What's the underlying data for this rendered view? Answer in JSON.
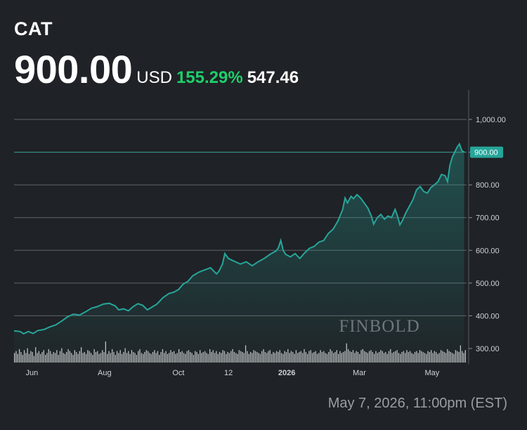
{
  "header": {
    "ticker": "CAT",
    "price": "900.00",
    "currency": "USD",
    "pct_change": "155.29%",
    "abs_change": "547.46"
  },
  "footer": {
    "date": "May 7, 2026, 11:00pm (EST)"
  },
  "watermark": "FINBOLD",
  "colors": {
    "background": "#1f2226",
    "line": "#26a69a",
    "positive": "#1ecf6b",
    "volume": "#d9dadc",
    "grid": "#6b7077"
  },
  "chart_data": {
    "type": "area",
    "title": "CAT",
    "y_tick_labels": [
      "1,000.00",
      "900.00",
      "800.00",
      "700.00",
      "600.00",
      "500.00",
      "400.00",
      "300.00"
    ],
    "y_ticks": [
      1000,
      900,
      800,
      700,
      600,
      500,
      400,
      300
    ],
    "ylim": [
      270,
      1095
    ],
    "x_tick_labels": [
      {
        "label": "Jun",
        "t": 15,
        "bold": false
      },
      {
        "label": "Aug",
        "t": 76,
        "bold": false
      },
      {
        "label": "Oct",
        "t": 138,
        "bold": false
      },
      {
        "label": "12",
        "t": 180,
        "bold": false
      },
      {
        "label": "2026",
        "t": 229,
        "bold": true
      },
      {
        "label": "Mar",
        "t": 290,
        "bold": false
      },
      {
        "label": "May",
        "t": 351,
        "bold": false
      }
    ],
    "last_value_label": "900.00",
    "last_value": 900,
    "grid": true,
    "series": [
      {
        "values": [
          [
            0,
            354
          ],
          [
            5,
            352
          ],
          [
            8,
            345
          ],
          [
            12,
            352
          ],
          [
            16,
            346
          ],
          [
            20,
            355
          ],
          [
            25,
            358
          ],
          [
            30,
            366
          ],
          [
            35,
            372
          ],
          [
            40,
            384
          ],
          [
            45,
            397
          ],
          [
            50,
            405
          ],
          [
            55,
            402
          ],
          [
            60,
            412
          ],
          [
            65,
            423
          ],
          [
            70,
            428
          ],
          [
            75,
            436
          ],
          [
            80,
            438
          ],
          [
            85,
            430
          ],
          [
            88,
            418
          ],
          [
            92,
            421
          ],
          [
            96,
            415
          ],
          [
            100,
            428
          ],
          [
            104,
            437
          ],
          [
            108,
            432
          ],
          [
            112,
            418
          ],
          [
            116,
            427
          ],
          [
            120,
            436
          ],
          [
            125,
            455
          ],
          [
            130,
            468
          ],
          [
            134,
            472
          ],
          [
            138,
            480
          ],
          [
            142,
            497
          ],
          [
            146,
            505
          ],
          [
            150,
            522
          ],
          [
            155,
            533
          ],
          [
            160,
            540
          ],
          [
            165,
            547
          ],
          [
            170,
            528
          ],
          [
            172,
            536
          ],
          [
            175,
            558
          ],
          [
            177,
            590
          ],
          [
            180,
            575
          ],
          [
            183,
            570
          ],
          [
            186,
            565
          ],
          [
            190,
            558
          ],
          [
            195,
            565
          ],
          [
            200,
            553
          ],
          [
            205,
            565
          ],
          [
            210,
            575
          ],
          [
            215,
            588
          ],
          [
            220,
            598
          ],
          [
            222,
            608
          ],
          [
            224,
            630
          ],
          [
            226,
            600
          ],
          [
            228,
            588
          ],
          [
            232,
            580
          ],
          [
            236,
            590
          ],
          [
            240,
            575
          ],
          [
            244,
            592
          ],
          [
            248,
            606
          ],
          [
            252,
            612
          ],
          [
            256,
            625
          ],
          [
            260,
            630
          ],
          [
            264,
            652
          ],
          [
            268,
            665
          ],
          [
            272,
            690
          ],
          [
            276,
            725
          ],
          [
            278,
            760
          ],
          [
            280,
            745
          ],
          [
            283,
            765
          ],
          [
            285,
            758
          ],
          [
            288,
            770
          ],
          [
            291,
            760
          ],
          [
            294,
            745
          ],
          [
            297,
            730
          ],
          [
            300,
            705
          ],
          [
            302,
            680
          ],
          [
            305,
            700
          ],
          [
            308,
            710
          ],
          [
            311,
            695
          ],
          [
            314,
            705
          ],
          [
            317,
            700
          ],
          [
            320,
            725
          ],
          [
            322,
            705
          ],
          [
            324,
            678
          ],
          [
            326,
            690
          ],
          [
            329,
            715
          ],
          [
            332,
            735
          ],
          [
            335,
            755
          ],
          [
            338,
            785
          ],
          [
            341,
            795
          ],
          [
            344,
            780
          ],
          [
            347,
            775
          ],
          [
            350,
            792
          ],
          [
            353,
            800
          ],
          [
            356,
            810
          ],
          [
            359,
            832
          ],
          [
            362,
            828
          ],
          [
            364,
            810
          ],
          [
            366,
            860
          ],
          [
            368,
            885
          ],
          [
            370,
            900
          ],
          [
            372,
            915
          ],
          [
            374,
            925
          ],
          [
            376,
            905
          ],
          [
            378,
            900
          ]
        ]
      }
    ],
    "volume": {
      "values": [
        10,
        12,
        9,
        14,
        11,
        8,
        13,
        10,
        15,
        9,
        12,
        11,
        7,
        16,
        10,
        12,
        9,
        11,
        13,
        8,
        10,
        14,
        12,
        9,
        11,
        10,
        13,
        8,
        12,
        15,
        10,
        9,
        11,
        14,
        12,
        10,
        8,
        13,
        11,
        9,
        12,
        16,
        10,
        11,
        9,
        13,
        12,
        10,
        8,
        14,
        11,
        12,
        9,
        10,
        13,
        11,
        22,
        9,
        12,
        10,
        14,
        11,
        8,
        12,
        10,
        13,
        9,
        11,
        15,
        10,
        12,
        9,
        13,
        11,
        10,
        8,
        12,
        14,
        10,
        9,
        11,
        13,
        12,
        10,
        9,
        11,
        13,
        10,
        12,
        8,
        11,
        14,
        10,
        12,
        9,
        10,
        13,
        11,
        12,
        9,
        10,
        14,
        11,
        12,
        10,
        9,
        12,
        13,
        11,
        10,
        8,
        12,
        11,
        9,
        13,
        10,
        11,
        12,
        10,
        9,
        14,
        11,
        13,
        10,
        12,
        9,
        11,
        10,
        13,
        12,
        9,
        11,
        10,
        12,
        14,
        11,
        10,
        9,
        13,
        12,
        11,
        10,
        18,
        12,
        9,
        11,
        10,
        13,
        12,
        11,
        10,
        9,
        12,
        14,
        11,
        10,
        12,
        13,
        9,
        11,
        10,
        12,
        11,
        13,
        10,
        9,
        12,
        11,
        14,
        10,
        12,
        11,
        9,
        13,
        10,
        11,
        12,
        10,
        14,
        11,
        9,
        12,
        13,
        10,
        11,
        12,
        9,
        10,
        13,
        11,
        12,
        10,
        9,
        11,
        14,
        12,
        10,
        11,
        13,
        9,
        12,
        10,
        11,
        12,
        20,
        14,
        12,
        11,
        13,
        10,
        12,
        11,
        9,
        13,
        14,
        12,
        11,
        10,
        12,
        13,
        11,
        9,
        12,
        10,
        11,
        13,
        12,
        10,
        11,
        9,
        12,
        14,
        10,
        11,
        12,
        13,
        10,
        9,
        11,
        12,
        10,
        13,
        11,
        12,
        10,
        9,
        11,
        12,
        10,
        13,
        12,
        11,
        10,
        9,
        12,
        11,
        13,
        10,
        12,
        11,
        9,
        10,
        13,
        12,
        11,
        10,
        14,
        12,
        11,
        10,
        9,
        13,
        12,
        11,
        18,
        12,
        10,
        13
      ]
    }
  }
}
